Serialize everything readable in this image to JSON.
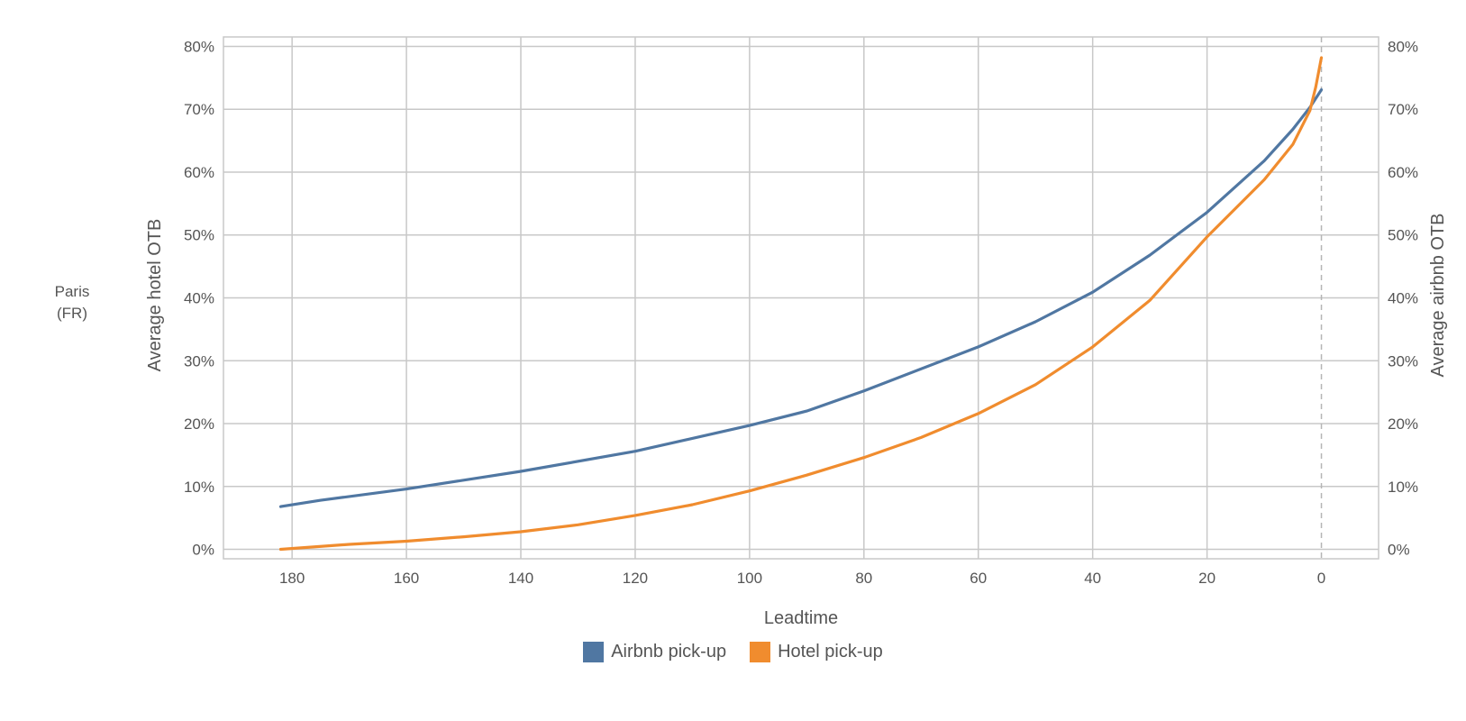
{
  "panel_label": "Paris\n(FR)",
  "legend": {
    "items": [
      {
        "label": "Airbnb pick-up",
        "color": "#5077a2"
      },
      {
        "label": "Hotel pick-up",
        "color": "#f08c2e"
      }
    ]
  },
  "chart_data": {
    "type": "line",
    "title": "",
    "xlabel": "Leadtime",
    "ylabel_left": "Average hotel OTB",
    "ylabel_right": "Average airbnb OTB",
    "x_reversed": true,
    "xlim": [
      192,
      -10
    ],
    "ylim": [
      -1.5,
      81.5
    ],
    "x_ticks": [
      180,
      160,
      140,
      120,
      100,
      80,
      60,
      40,
      20,
      0
    ],
    "x_tick_labels": [
      "180",
      "160",
      "140",
      "120",
      "100",
      "80",
      "60",
      "40",
      "20",
      "0"
    ],
    "y_ticks": [
      0,
      10,
      20,
      30,
      40,
      50,
      60,
      70,
      80
    ],
    "y_tick_labels_left": [
      "0%",
      "10%",
      "20%",
      "30%",
      "40%",
      "50%",
      "60%",
      "70%",
      "80%"
    ],
    "y_tick_labels_right": [
      "0%",
      "10%",
      "20%",
      "30%",
      "40%",
      "50%",
      "60%",
      "70%",
      "80%"
    ],
    "grid": true,
    "legend_position": "bottom-center",
    "reference_line": {
      "x": 0,
      "style": "dashed"
    },
    "series": [
      {
        "name": "Airbnb pick-up",
        "color": "#5077a2",
        "x": [
          182,
          175,
          160,
          140,
          120,
          100,
          90,
          80,
          60,
          50,
          40,
          30,
          20,
          10,
          5,
          2,
          0
        ],
        "y": [
          6.8,
          7.8,
          9.6,
          12.4,
          15.6,
          19.7,
          22.0,
          25.2,
          32.2,
          36.2,
          40.9,
          46.8,
          53.6,
          61.8,
          66.8,
          70.3,
          73.1
        ]
      },
      {
        "name": "Hotel pick-up",
        "color": "#f08c2e",
        "x": [
          182,
          170,
          160,
          150,
          140,
          130,
          120,
          110,
          100,
          90,
          80,
          70,
          60,
          50,
          40,
          30,
          20,
          10,
          5,
          2,
          1,
          0
        ],
        "y": [
          0.0,
          0.8,
          1.3,
          2.0,
          2.8,
          3.9,
          5.4,
          7.1,
          9.3,
          11.8,
          14.6,
          17.8,
          21.6,
          26.2,
          32.2,
          39.6,
          49.7,
          58.8,
          64.4,
          69.8,
          73.5,
          78.2
        ]
      }
    ]
  }
}
